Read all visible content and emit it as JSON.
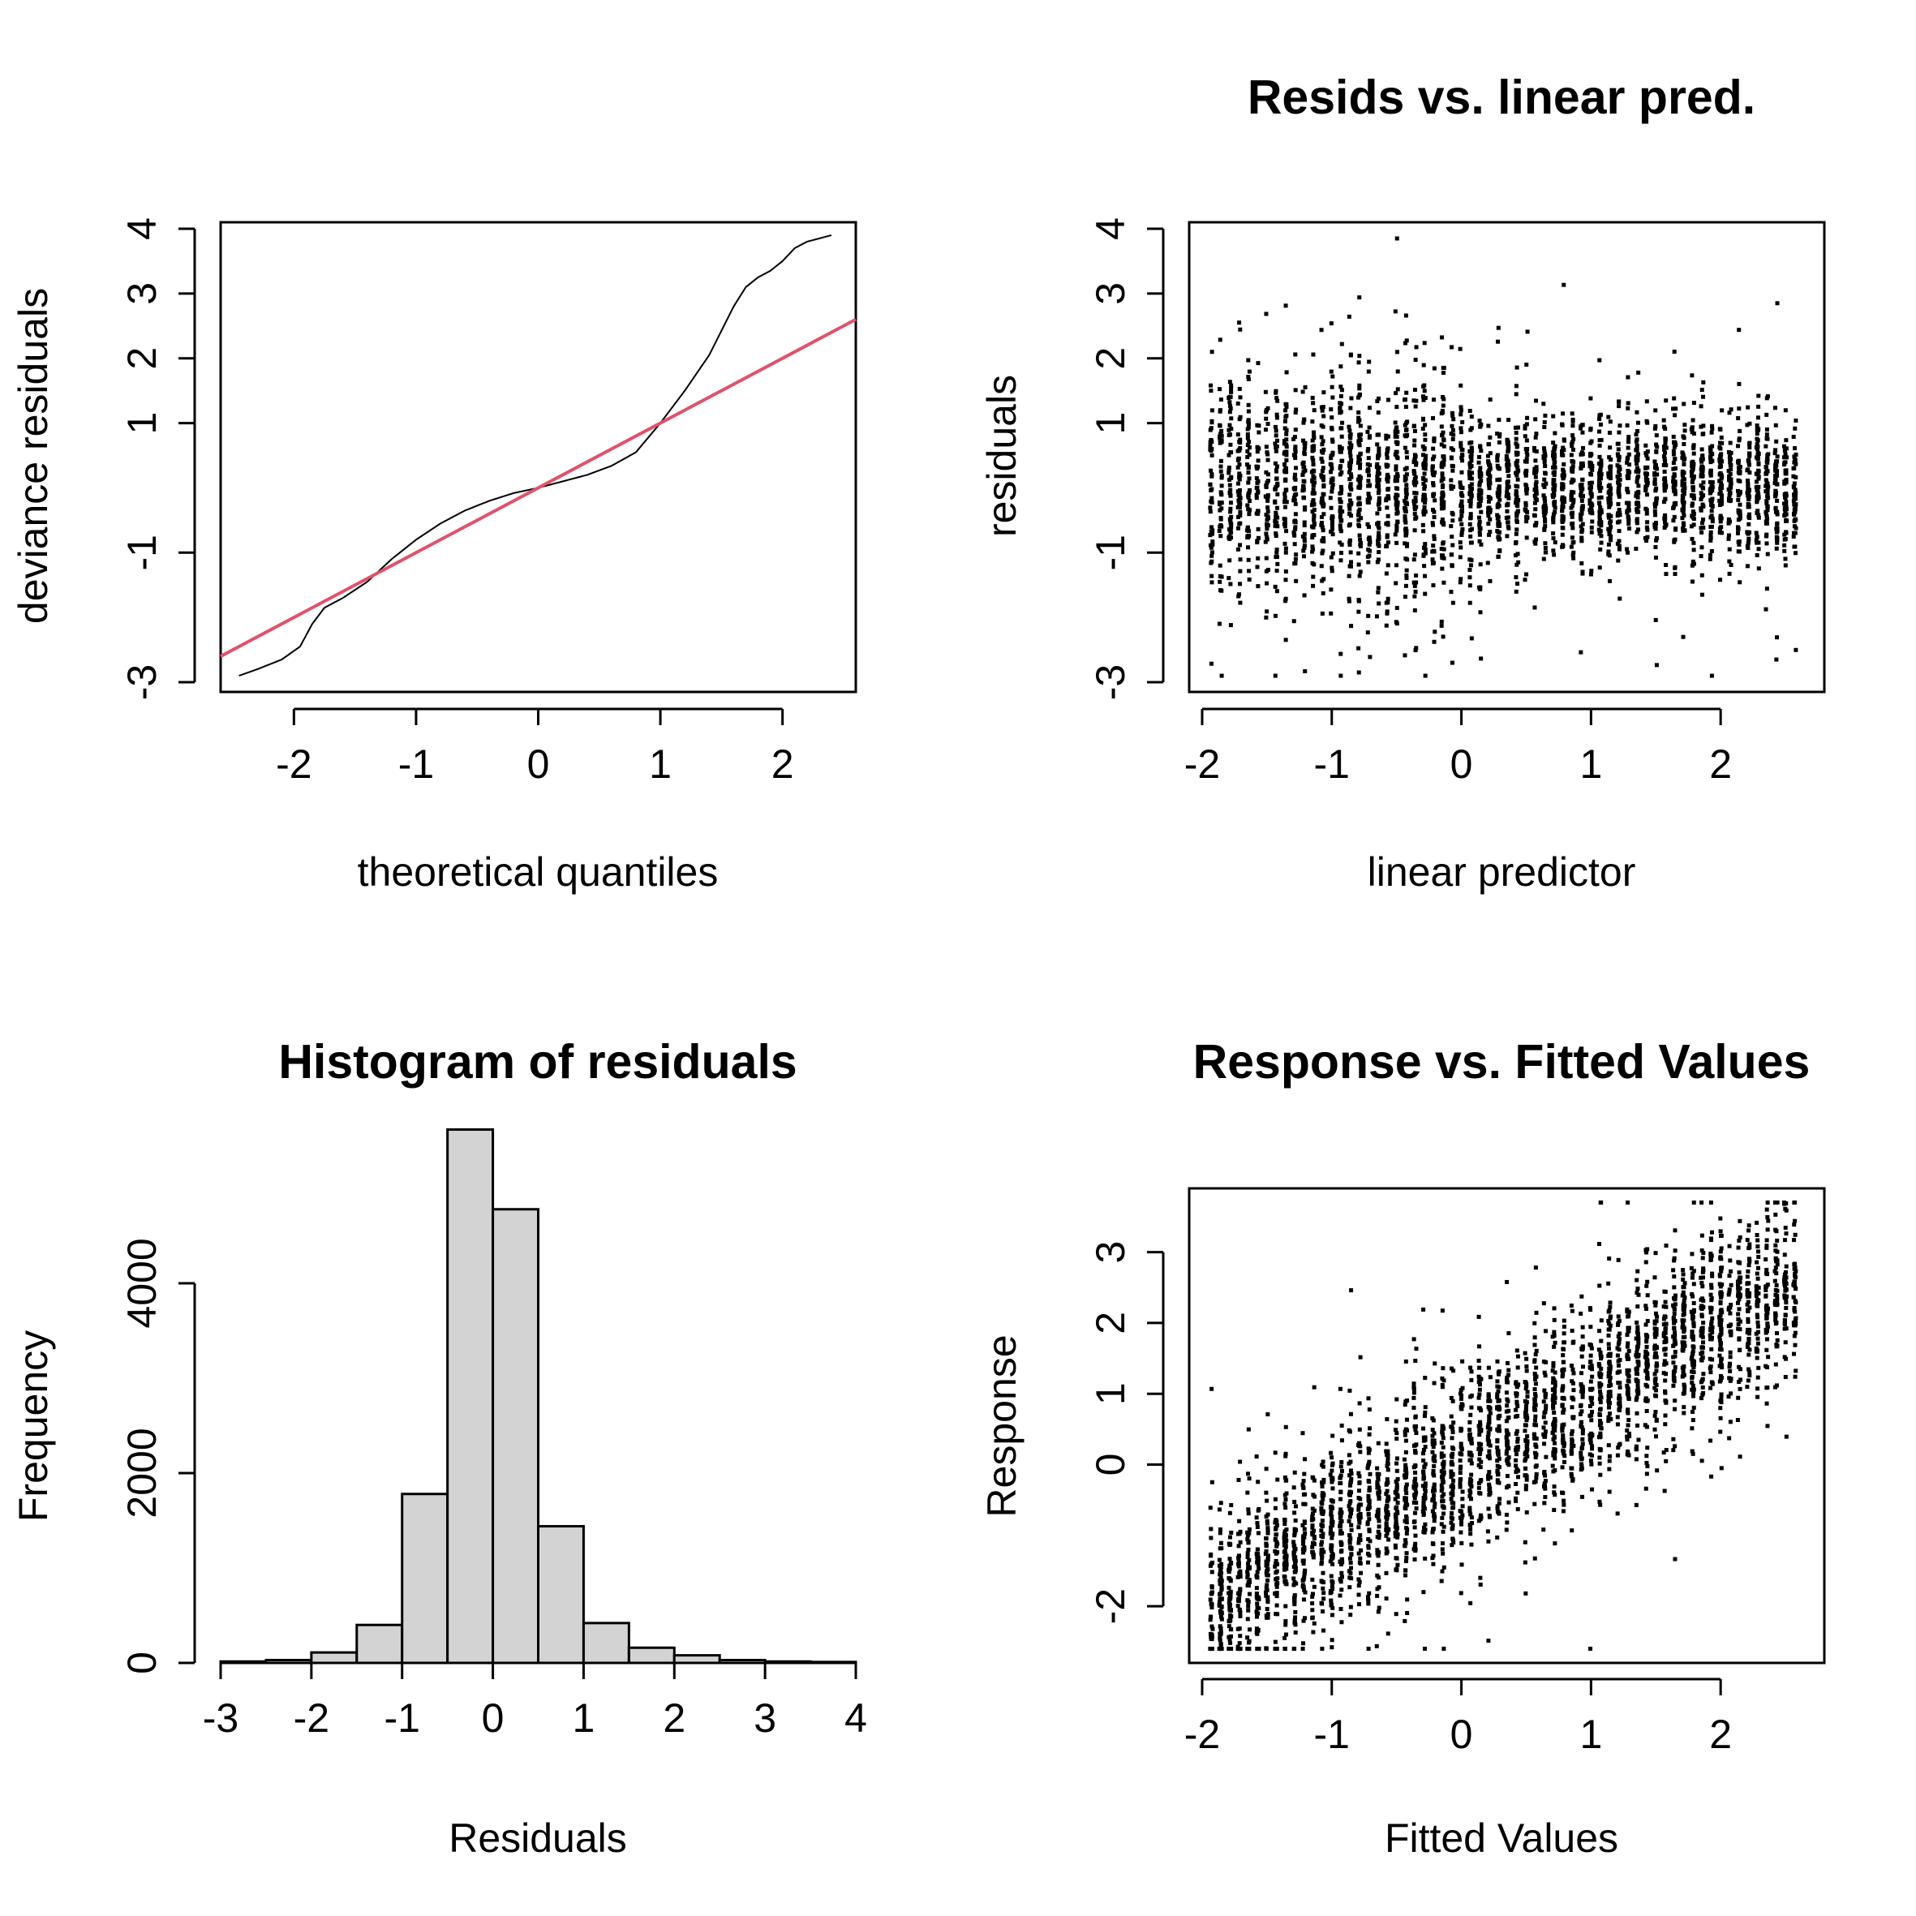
{
  "chart_data": [
    {
      "id": "qq",
      "type": "scatter",
      "title": "",
      "xlabel": "theoretical quantiles",
      "ylabel": "deviance residuals",
      "xlim": [
        -2.6,
        2.6
      ],
      "ylim": [
        -3.15,
        4.1
      ],
      "xticks": [
        -2,
        -1,
        0,
        1,
        2
      ],
      "yticks": [
        -3,
        -1,
        1,
        2,
        3,
        4
      ],
      "qq_curve": {
        "x": [
          -2.45,
          -2.3,
          -2.1,
          -1.95,
          -1.85,
          -1.75,
          -1.6,
          -1.4,
          -1.2,
          -1.0,
          -0.8,
          -0.6,
          -0.4,
          -0.2,
          0.0,
          0.2,
          0.4,
          0.6,
          0.8,
          1.0,
          1.2,
          1.4,
          1.6,
          1.7,
          1.8,
          1.9,
          2.0,
          2.1,
          2.2,
          2.4
        ],
        "y": [
          -2.9,
          -2.8,
          -2.65,
          -2.45,
          -2.1,
          -1.85,
          -1.7,
          -1.45,
          -1.1,
          -0.8,
          -0.55,
          -0.35,
          -0.2,
          -0.08,
          0.0,
          0.1,
          0.2,
          0.34,
          0.55,
          1.0,
          1.5,
          2.05,
          2.8,
          3.1,
          3.25,
          3.35,
          3.5,
          3.7,
          3.8,
          3.9
        ]
      },
      "reference_line": {
        "intercept": 0.0,
        "slope": 1.0,
        "color": "#DF536B"
      }
    },
    {
      "id": "resid",
      "type": "scatter",
      "title": "Resids vs. linear pred.",
      "xlabel": "linear predictor",
      "ylabel": "residuals",
      "xlim": [
        -2.1,
        2.8
      ],
      "ylim": [
        -3.15,
        4.1
      ],
      "xticks": [
        -2,
        -1,
        0,
        1,
        2
      ],
      "yticks": [
        -3,
        -1,
        1,
        2,
        3,
        4
      ]
    },
    {
      "id": "hist",
      "type": "bar",
      "title": "Histogram of residuals",
      "xlabel": "Residuals",
      "ylabel": "Frequency",
      "xlim": [
        -3,
        4
      ],
      "ylim": [
        0,
        5000
      ],
      "xticks": [
        -3,
        -2,
        -1,
        0,
        1,
        2,
        3,
        4
      ],
      "yticks": [
        0,
        2000,
        4000
      ],
      "bin_edges": [
        -3.0,
        -2.5,
        -2.0,
        -1.5,
        -1.0,
        -0.5,
        0.0,
        0.5,
        1.0,
        1.5,
        2.0,
        2.5,
        3.0,
        3.5,
        4.0
      ],
      "values": [
        15,
        30,
        110,
        400,
        1780,
        5620,
        4780,
        1440,
        420,
        160,
        80,
        30,
        15,
        10
      ],
      "bar_color": "#D3D3D3"
    },
    {
      "id": "fitted",
      "type": "scatter",
      "title": "Response vs. Fitted Values",
      "xlabel": "Fitted Values",
      "ylabel": "Response",
      "xlim": [
        -2.1,
        2.8
      ],
      "ylim": [
        -2.8,
        3.9
      ],
      "xticks": [
        -2,
        -1,
        0,
        1,
        2
      ],
      "yticks": [
        -2,
        0,
        1,
        2,
        3
      ]
    }
  ]
}
